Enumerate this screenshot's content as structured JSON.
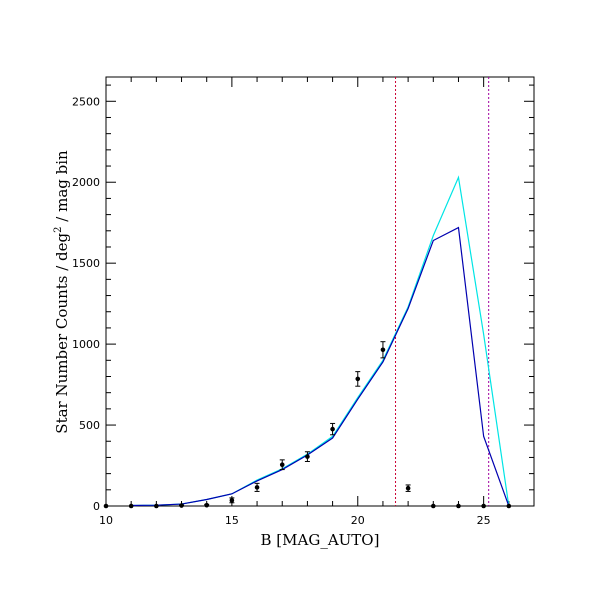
{
  "chart_data": {
    "type": "line",
    "title": "",
    "xlabel": "B [MAG_AUTO]",
    "ylabel": "Star Number Counts / deg² / mag bin",
    "ylabel_parts": {
      "pre": "Star Number Counts / deg",
      "sup": "2",
      "post": " / mag bin"
    },
    "xlim": [
      10,
      27
    ],
    "ylim": [
      0,
      2650
    ],
    "xticks": [
      10,
      15,
      20,
      25
    ],
    "yticks": [
      0,
      500,
      1000,
      1500,
      2000,
      2500
    ],
    "x_minor_step": 1,
    "y_minor_step": 100,
    "grid": false,
    "series": [
      {
        "kind": "line",
        "color": "#00e5e5",
        "x": [
          11,
          12,
          13,
          14,
          15,
          16,
          17,
          18,
          19,
          20,
          21,
          22,
          23,
          24,
          25,
          26
        ],
        "y": [
          3,
          5,
          12,
          40,
          75,
          160,
          230,
          320,
          430,
          670,
          900,
          1230,
          1670,
          2030,
          1060,
          0
        ]
      },
      {
        "kind": "line",
        "color": "#0000b0",
        "x": [
          11,
          12,
          13,
          14,
          15,
          16,
          17,
          18,
          19,
          20,
          21,
          22,
          23,
          24,
          25,
          26
        ],
        "y": [
          3,
          5,
          12,
          40,
          75,
          155,
          225,
          315,
          420,
          660,
          890,
          1220,
          1640,
          1720,
          430,
          0
        ]
      },
      {
        "kind": "points",
        "color": "#000000",
        "x": [
          10,
          11,
          12,
          13,
          14,
          15,
          16,
          17,
          18,
          19,
          20,
          21,
          22,
          23,
          24,
          25,
          26
        ],
        "y": [
          0,
          0,
          0,
          3,
          5,
          35,
          115,
          255,
          305,
          475,
          785,
          965,
          110,
          0,
          0,
          0,
          0
        ],
        "yerr": [
          0,
          0,
          0,
          3,
          5,
          15,
          25,
          30,
          30,
          35,
          45,
          50,
          20,
          0,
          0,
          0,
          0
        ]
      }
    ],
    "vlines": [
      {
        "x": 21.5,
        "color": "#cc0033",
        "style": "dotted"
      },
      {
        "x": 25.2,
        "color": "#a000a0",
        "style": "dotted"
      }
    ]
  }
}
